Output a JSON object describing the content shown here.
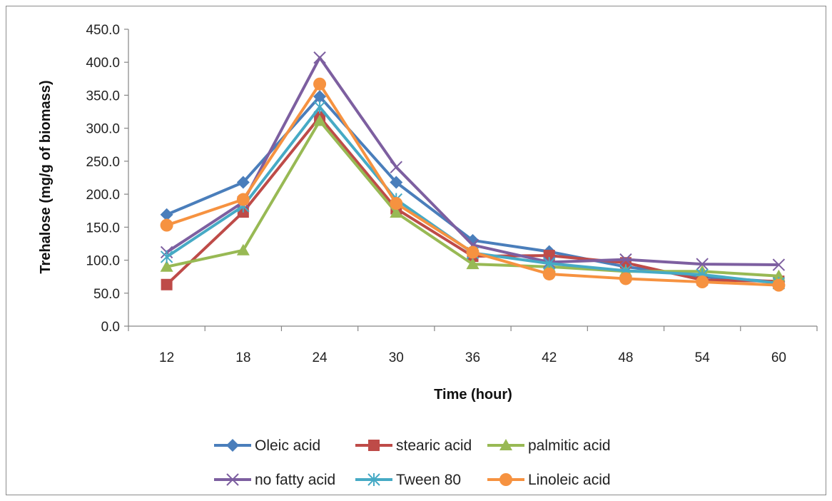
{
  "chart_data": {
    "type": "line",
    "title": "",
    "xlabel": "Time (hour)",
    "ylabel": "Trehalose  (mg/g of biomass)",
    "categories": [
      "12",
      "18",
      "24",
      "30",
      "36",
      "42",
      "48",
      "54",
      "60"
    ],
    "ylim": [
      0,
      450
    ],
    "yticks": [
      "0.0",
      "50.0",
      "100.0",
      "150.0",
      "200.0",
      "250.0",
      "300.0",
      "350.0",
      "400.0",
      "450.0"
    ],
    "grid": false,
    "legend_position": "bottom",
    "series": [
      {
        "name": "Oleic acid",
        "color": "#4a7ebb",
        "marker": "diamond",
        "values": [
          169,
          218,
          348,
          218,
          130,
          113,
          90,
          75,
          67
        ]
      },
      {
        "name": "stearic acid",
        "color": "#be4b48",
        "marker": "square",
        "values": [
          63,
          173,
          317,
          178,
          106,
          107,
          96,
          70,
          68
        ]
      },
      {
        "name": "palmitic acid",
        "color": "#98b954",
        "marker": "triangle",
        "values": [
          90,
          115,
          311,
          172,
          94,
          90,
          83,
          83,
          76
        ]
      },
      {
        "name": "no fatty acid",
        "color": "#7d5fa0",
        "marker": "x",
        "values": [
          112,
          188,
          407,
          241,
          123,
          97,
          101,
          94,
          93
        ]
      },
      {
        "name": "Tween 80",
        "color": "#46aac5",
        "marker": "star",
        "values": [
          105,
          182,
          332,
          192,
          111,
          95,
          84,
          78,
          65
        ]
      },
      {
        "name": "Linoleic acid",
        "color": "#f69240",
        "marker": "circle",
        "values": [
          153,
          192,
          367,
          186,
          112,
          79,
          72,
          67,
          62
        ]
      }
    ]
  }
}
